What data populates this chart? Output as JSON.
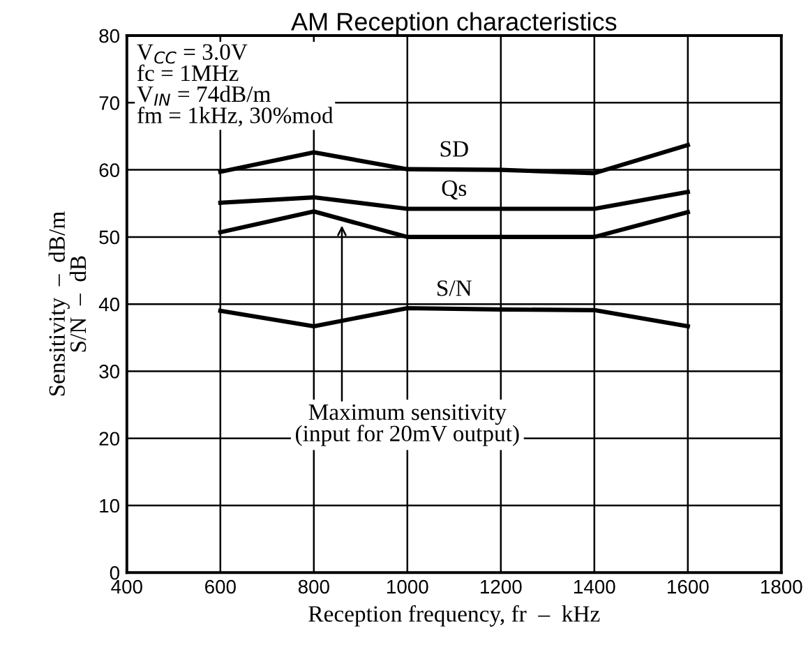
{
  "chart_data": {
    "type": "line",
    "title": "AM Reception characteristics",
    "xlabel": "Reception frequency, fr  –  kHz",
    "ylabel": "Sensitivity  –  dB/m\nS/N  –  dB",
    "x": [
      600,
      800,
      1000,
      1200,
      1400,
      1600
    ],
    "series": [
      {
        "name": "SD",
        "color": "#000000",
        "values": [
          59.7,
          62.6,
          60.1,
          60.0,
          59.5,
          63.7
        ]
      },
      {
        "name": "Qs",
        "color": "#000000",
        "values": [
          55.1,
          55.9,
          54.2,
          54.2,
          54.2,
          56.7
        ]
      },
      {
        "color": "#000000",
        "values": [
          50.7,
          53.8,
          50.0,
          50.0,
          50.0,
          53.7
        ]
      },
      {
        "name": "S/N",
        "color": "#000000",
        "values": [
          39.0,
          36.7,
          39.4,
          39.2,
          39.1,
          36.7
        ]
      }
    ],
    "xlim": [
      400,
      1800
    ],
    "xticks": [
      400,
      600,
      800,
      1000,
      1200,
      1400,
      1600,
      1800
    ],
    "ylim": [
      0,
      80
    ],
    "yticks": [
      0,
      10,
      20,
      30,
      40,
      50,
      60,
      70,
      80
    ],
    "grid": true,
    "marker": "none",
    "line_style": "solid",
    "annotations": [
      "V$_{CC}$ = 3.0V\nfc = 1MHz\nV$_{IN}$ = 74dB/m\nfm = 1kHz, 30%mod",
      {
        "text": "Maximum sensitivity\n(input for 20mV output)",
        "x": 860,
        "y": 51.7
      }
    ]
  }
}
